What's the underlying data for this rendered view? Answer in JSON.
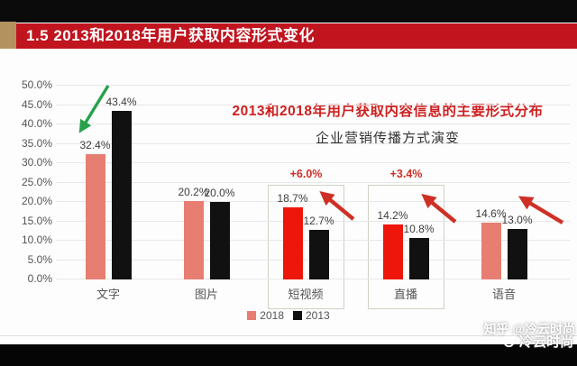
{
  "page": {
    "title_bar": {
      "label": "1.5 2013和2018年用户获取内容形式变化"
    },
    "watermarks": {
      "zhihu": "知乎 @冷云时尚",
      "weibo": "冷云时尚"
    }
  },
  "chart_data": {
    "type": "bar",
    "title": "2013和2018年用户获取内容信息的主要形式分布",
    "subtitle": "企业营销传播方式演变",
    "categories": [
      "文字",
      "图片",
      "短视频",
      "直播",
      "语音"
    ],
    "series": [
      {
        "name": "2018",
        "values": [
          32.4,
          20.2,
          18.7,
          14.2,
          14.6
        ],
        "values_display": [
          "32.4%",
          "20.2%",
          "18.7%",
          "14.2%",
          "14.6%"
        ],
        "colors": [
          "#e87d72",
          "#e87d72",
          "#ee160b",
          "#ee160b",
          "#e87d72"
        ],
        "legend_color": "#e87d72"
      },
      {
        "name": "2013",
        "values": [
          43.4,
          20.0,
          12.7,
          10.8,
          13.0
        ],
        "values_display": [
          "43.4%",
          "20.0%",
          "12.7%",
          "10.8%",
          "13.0%"
        ],
        "colors": [
          "#111111",
          "#111111",
          "#111111",
          "#111111",
          "#111111"
        ],
        "legend_color": "#111111"
      }
    ],
    "highlights": [
      {
        "category_index": 2,
        "annotation": "+6.0%"
      },
      {
        "category_index": 3,
        "annotation": "+3.4%"
      }
    ],
    "arrows": [
      {
        "name": "decrease-arrow",
        "direction": "down-left",
        "color": "#27a14b",
        "near_category": "文字"
      },
      {
        "name": "increase-arrow-1",
        "direction": "up-left",
        "color": "#ce3026",
        "near_category": "短视频"
      },
      {
        "name": "increase-arrow-2",
        "direction": "up-left",
        "color": "#ce3026",
        "near_category": "直播"
      },
      {
        "name": "increase-arrow-3",
        "direction": "up-left",
        "color": "#ce3026",
        "near_category": "语音"
      }
    ],
    "ylim": [
      0,
      50
    ],
    "ytick_step": 5,
    "ytick_labels": [
      "0.0%",
      "5.0%",
      "10.0%",
      "15.0%",
      "20.0%",
      "25.0%",
      "30.0%",
      "35.0%",
      "40.0%",
      "45.0%",
      "50.0%"
    ],
    "grid": true,
    "legend_position": "bottom"
  },
  "colors": {
    "title_bar_red": "#c0141f",
    "title_bar_gold": "#b3925f",
    "top_strip_black": "#0b0b0b",
    "chart_title_red": "#cf2020",
    "bar_salmon_2018": "#e87d72",
    "bar_highlight_red_2018": "#ee160b",
    "bar_black_2013": "#111111",
    "annotation_red": "#cd2f26",
    "highlight_box_border": "#ccd3c5",
    "arrow_green": "#27a14b",
    "arrow_red": "#ce3026",
    "gridline_gray": "#e7e7e7",
    "axis_text_gray": "#555555"
  }
}
